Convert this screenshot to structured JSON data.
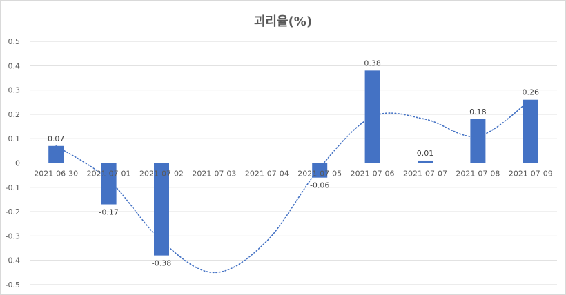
{
  "chart_data": {
    "type": "bar",
    "title": "괴리율(%)",
    "xlabel": "",
    "ylabel": "",
    "categories": [
      "2021-06-30",
      "2021-07-01",
      "2021-07-02",
      "2021-07-03",
      "2021-07-04",
      "2021-07-05",
      "2021-07-06",
      "2021-07-07",
      "2021-07-08",
      "2021-07-09"
    ],
    "values": [
      0.07,
      -0.17,
      -0.38,
      null,
      null,
      -0.06,
      0.38,
      0.01,
      0.18,
      0.26
    ],
    "data_labels": [
      "0.07",
      "-0.17",
      "-0.38",
      "",
      "",
      "-0.06",
      "0.38",
      "0.01",
      "0.18",
      "0.26"
    ],
    "ylim": [
      -0.5,
      0.5
    ],
    "yticks": [
      0.5,
      0.4,
      0.3,
      0.2,
      0.1,
      0,
      -0.1,
      -0.2,
      -0.3,
      -0.4,
      -0.5
    ],
    "ytick_labels": [
      "0.5",
      "0.4",
      "0.3",
      "0.2",
      "0.1",
      "0",
      "-0.1",
      "-0.2",
      "-0.3",
      "-0.4",
      "-0.5"
    ],
    "grid": true,
    "trendline": "polynomial",
    "trendline_values": [
      0.07,
      -0.07,
      -0.32,
      -0.45,
      -0.32,
      -0.02,
      0.19,
      0.18,
      0.11,
      0.26
    ],
    "legend": "none",
    "bar_color": "#4472c4"
  }
}
